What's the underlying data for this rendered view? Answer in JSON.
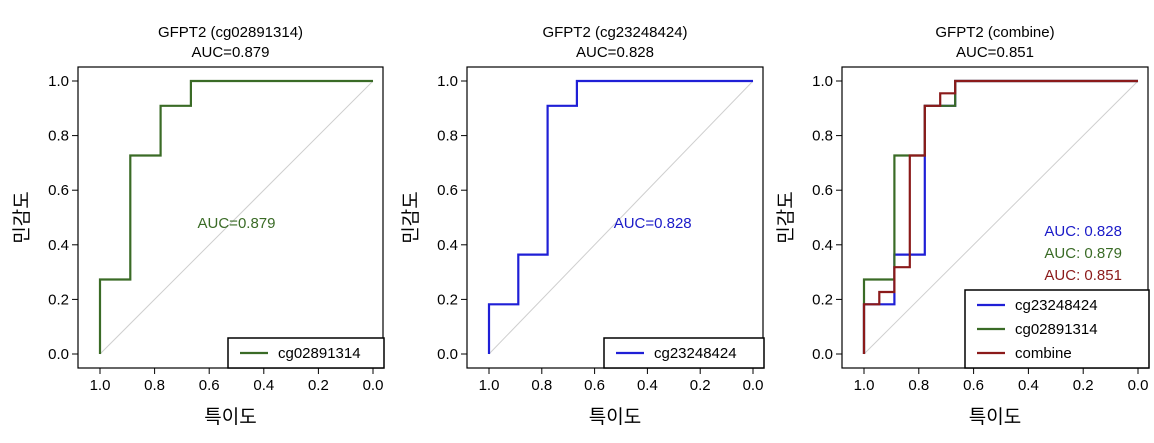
{
  "chart_data": [
    {
      "type": "line",
      "title_line1": "GFPT2 (cg02891314)",
      "title_line2": "AUC=0.879",
      "xlabel": "특이도",
      "ylabel": "민감도",
      "xlim": [
        1.0,
        0.0
      ],
      "ylim": [
        0.0,
        1.0
      ],
      "x_reversed": true,
      "ticks": [
        "1.0",
        "0.8",
        "0.6",
        "0.4",
        "0.2",
        "0.0"
      ],
      "diagonal": true,
      "auc_text": [
        {
          "text": "AUC=0.879",
          "color": "#3a6b26",
          "x": 0.5,
          "y": 0.48
        }
      ],
      "legend_placement": "bottom-right",
      "series": [
        {
          "name": "cg02891314",
          "color": "#3a6b26",
          "x": [
            1.0,
            1.0,
            0.889,
            0.889,
            0.778,
            0.778,
            0.667,
            0.667,
            0.0
          ],
          "y": [
            0.0,
            0.273,
            0.273,
            0.727,
            0.727,
            0.909,
            0.909,
            1.0,
            1.0
          ]
        }
      ]
    },
    {
      "type": "line",
      "title_line1": "GFPT2 (cg23248424)",
      "title_line2": "AUC=0.828",
      "xlabel": "특이도",
      "ylabel": "민감도",
      "xlim": [
        1.0,
        0.0
      ],
      "ylim": [
        0.0,
        1.0
      ],
      "x_reversed": true,
      "ticks": [
        "1.0",
        "0.8",
        "0.6",
        "0.4",
        "0.2",
        "0.0"
      ],
      "diagonal": true,
      "auc_text": [
        {
          "text": "AUC=0.828",
          "color": "#1a1ac8",
          "x": 0.38,
          "y": 0.48
        }
      ],
      "legend_placement": "bottom-right",
      "series": [
        {
          "name": "cg23248424",
          "color": "#1f1fd6",
          "x": [
            1.0,
            1.0,
            0.889,
            0.889,
            0.778,
            0.778,
            0.667,
            0.667,
            0.0
          ],
          "y": [
            0.0,
            0.182,
            0.182,
            0.364,
            0.364,
            0.909,
            0.909,
            1.0,
            1.0
          ]
        }
      ]
    },
    {
      "type": "line",
      "title_line1": "GFPT2 (combine)",
      "title_line2": "AUC=0.851",
      "xlabel": "특이도",
      "ylabel": "민감도",
      "xlim": [
        1.0,
        0.0
      ],
      "ylim": [
        0.0,
        1.0
      ],
      "x_reversed": true,
      "ticks": [
        "1.0",
        "0.8",
        "0.6",
        "0.4",
        "0.2",
        "0.0"
      ],
      "diagonal": true,
      "auc_text": [
        {
          "text": "AUC: 0.828",
          "color": "#1a1ac8",
          "x": 0.2,
          "y": 0.45
        },
        {
          "text": "AUC: 0.879",
          "color": "#3a6b26",
          "x": 0.2,
          "y": 0.37
        },
        {
          "text": "AUC: 0.851",
          "color": "#8b1a1a",
          "x": 0.2,
          "y": 0.29
        }
      ],
      "legend_placement": "bottom-right",
      "series": [
        {
          "name": "cg23248424",
          "color": "#1f1fd6",
          "x": [
            1.0,
            1.0,
            0.889,
            0.889,
            0.778,
            0.778,
            0.667,
            0.667,
            0.0
          ],
          "y": [
            0.0,
            0.182,
            0.182,
            0.364,
            0.364,
            0.909,
            0.909,
            1.0,
            1.0
          ]
        },
        {
          "name": "cg02891314",
          "color": "#3a6b26",
          "x": [
            1.0,
            1.0,
            0.889,
            0.889,
            0.778,
            0.778,
            0.667,
            0.667,
            0.0
          ],
          "y": [
            0.0,
            0.273,
            0.273,
            0.727,
            0.727,
            0.909,
            0.909,
            1.0,
            1.0
          ]
        },
        {
          "name": "combine",
          "color": "#8b1a1a",
          "x": [
            1.0,
            1.0,
            0.944,
            0.944,
            0.889,
            0.889,
            0.833,
            0.833,
            0.778,
            0.778,
            0.722,
            0.722,
            0.667,
            0.667,
            0.0
          ],
          "y": [
            0.0,
            0.182,
            0.182,
            0.227,
            0.227,
            0.318,
            0.318,
            0.727,
            0.727,
            0.909,
            0.909,
            0.955,
            0.955,
            1.0,
            1.0
          ]
        }
      ]
    }
  ]
}
